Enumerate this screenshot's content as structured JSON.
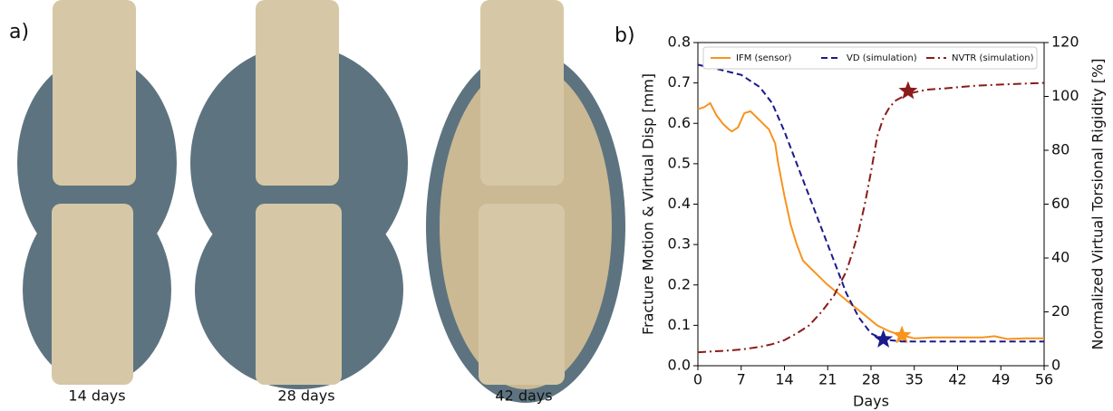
{
  "panel_a": {
    "label": "a)",
    "captions": [
      "14 days",
      "28 days",
      "42 days"
    ]
  },
  "chart_data": {
    "type": "line",
    "panel_label": "b)",
    "x_label": "Days",
    "y_label": "Fracture Motion & Virtual Disp [mm]",
    "y2_label": "Normalized Virtual Torsional Rigidity [%]",
    "xlim": [
      0,
      56
    ],
    "xticks": [
      0,
      7,
      14,
      21,
      28,
      35,
      42,
      49,
      56
    ],
    "ylim": [
      0,
      0.8
    ],
    "yticks": [
      {
        "value": 0,
        "label": "0.0"
      },
      0.1,
      0.2,
      0.3,
      0.4,
      0.5,
      0.6,
      0.7,
      0.8
    ],
    "y2lim": [
      0,
      120
    ],
    "y2ticks": [
      0,
      20,
      40,
      60,
      80,
      100,
      120
    ],
    "legend": "top",
    "series": [
      {
        "name": "IFM (sensor)",
        "color": "#f7931e",
        "style": "solid",
        "x": [
          0,
          1,
          2,
          3,
          4,
          5,
          5.5,
          6.5,
          7.5,
          8.5,
          9.5,
          10.5,
          11.5,
          12.5,
          13,
          14,
          15,
          16,
          17,
          19,
          21,
          23,
          25,
          27,
          29,
          31,
          33,
          35,
          38,
          42,
          46,
          48,
          50,
          53,
          56
        ],
        "values": [
          0.635,
          0.64,
          0.65,
          0.62,
          0.6,
          0.585,
          0.58,
          0.59,
          0.625,
          0.63,
          0.615,
          0.6,
          0.585,
          0.55,
          0.5,
          0.42,
          0.35,
          0.3,
          0.26,
          0.23,
          0.2,
          0.175,
          0.15,
          0.125,
          0.1,
          0.085,
          0.075,
          0.068,
          0.07,
          0.07,
          0.07,
          0.073,
          0.066,
          0.068,
          0.068
        ],
        "star": {
          "x": 33,
          "y": 0.075
        }
      },
      {
        "name": "VD (simulation)",
        "color": "#1a1a8c",
        "style": "dashed",
        "x": [
          0,
          3,
          7,
          10,
          12,
          14,
          16,
          18,
          20,
          22,
          24,
          26,
          28,
          30,
          33,
          40,
          56
        ],
        "values": [
          0.745,
          0.735,
          0.72,
          0.69,
          0.65,
          0.58,
          0.5,
          0.42,
          0.34,
          0.26,
          0.18,
          0.12,
          0.08,
          0.065,
          0.06,
          0.06,
          0.06
        ],
        "star": {
          "x": 30,
          "y": 0.065
        }
      },
      {
        "name": "NVTR (simulation)",
        "color": "#8b1a1a",
        "style": "dashdot",
        "axis": "y2",
        "x": [
          0,
          4,
          7,
          10,
          12,
          14,
          16,
          18,
          20,
          22,
          24,
          25,
          26,
          27,
          28,
          29,
          30,
          31,
          32,
          34,
          37,
          40,
          45,
          50,
          56
        ],
        "values": [
          5,
          5.5,
          6,
          7,
          8,
          9.5,
          12,
          15,
          20,
          26,
          35,
          42,
          50,
          60,
          72,
          85,
          92,
          96,
          98.5,
          101,
          102.5,
          103,
          104,
          104.5,
          105
        ],
        "star": {
          "x": 34,
          "y": 102
        }
      }
    ]
  }
}
